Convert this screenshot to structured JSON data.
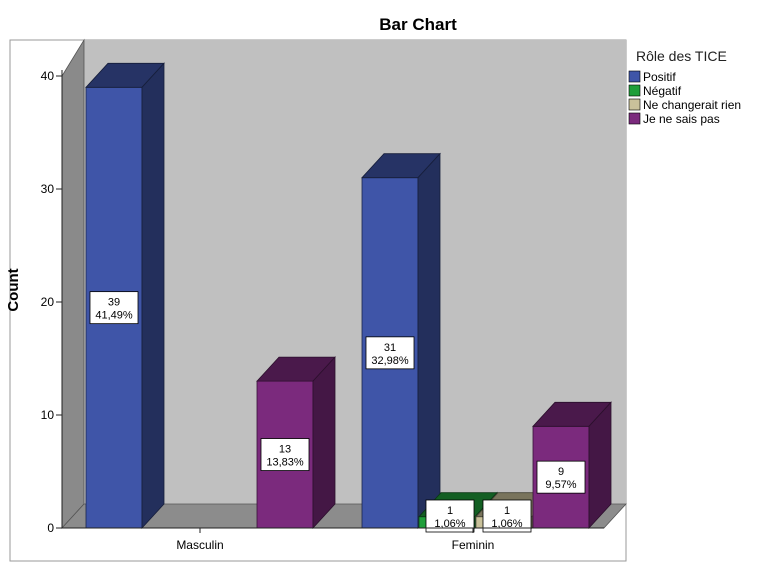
{
  "chart_data": {
    "type": "bar",
    "title": "Bar Chart",
    "ylabel": "Count",
    "xlabel": "",
    "ylim": [
      0,
      40
    ],
    "yticks": [
      0,
      10,
      20,
      30,
      40
    ],
    "categories": [
      "Masculin",
      "Feminin"
    ],
    "legend": {
      "title": "Rôle des TICE",
      "placement": "top-right"
    },
    "series": [
      {
        "name": "Positif",
        "color": "#3F55A8",
        "values": [
          39,
          31
        ],
        "labels": [
          [
            "39",
            "41,49%"
          ],
          [
            "31",
            "32,98%"
          ]
        ]
      },
      {
        "name": "Négatif",
        "color": "#1F9E3A",
        "values": [
          0,
          1
        ],
        "labels": [
          null,
          [
            "1",
            "1,06%"
          ]
        ]
      },
      {
        "name": "Ne changerait rien",
        "color": "#C9C19A",
        "values": [
          0,
          1
        ],
        "labels": [
          null,
          [
            "1",
            "1,06%"
          ]
        ]
      },
      {
        "name": "Je ne sais pas",
        "color": "#7B2A7D",
        "values": [
          13,
          9
        ],
        "labels": [
          [
            "13",
            "13,83%"
          ],
          [
            "9",
            "9,57%"
          ]
        ]
      }
    ],
    "grid": false
  }
}
